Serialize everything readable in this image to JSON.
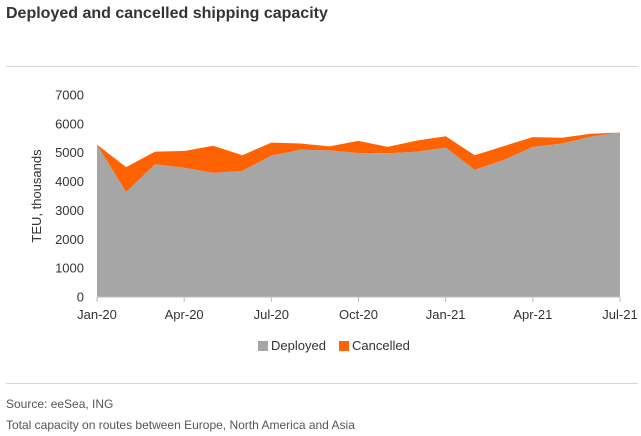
{
  "title": "Deployed and cancelled shipping capacity",
  "source": "Source: eeSea, ING",
  "note": "Total capacity on routes between Europe, North America and Asia",
  "colors": {
    "deployed": "#a6a6a6",
    "cancelled": "#ff6200"
  },
  "chart_data": {
    "type": "area",
    "stacked": true,
    "ylabel": "TEU, thousands",
    "ylim": [
      0,
      7000
    ],
    "yticks": [
      0,
      1000,
      2000,
      3000,
      4000,
      5000,
      6000,
      7000
    ],
    "xtick_labels": [
      "Jan-20",
      "Apr-20",
      "Jul-20",
      "Oct-20",
      "Jan-21",
      "Apr-21",
      "Jul-21"
    ],
    "xtick_index": [
      0,
      3,
      6,
      9,
      12,
      15,
      18
    ],
    "x": [
      "Jan-20",
      "Feb-20",
      "Mar-20",
      "Apr-20",
      "May-20",
      "Jun-20",
      "Jul-20",
      "Aug-20",
      "Sep-20",
      "Oct-20",
      "Nov-20",
      "Dec-20",
      "Jan-21",
      "Feb-21",
      "Mar-21",
      "Apr-21",
      "May-21",
      "Jun-21",
      "Jul-21"
    ],
    "series": [
      {
        "name": "Deployed",
        "values": [
          5280,
          3640,
          4600,
          4480,
          4300,
          4370,
          4900,
          5100,
          5080,
          4990,
          4980,
          5030,
          5180,
          4410,
          4750,
          5200,
          5320,
          5560,
          5700
        ]
      },
      {
        "name": "Cancelled",
        "values": [
          0,
          860,
          440,
          580,
          940,
          540,
          450,
          220,
          140,
          420,
          220,
          390,
          390,
          500,
          480,
          340,
          200,
          100,
          0
        ]
      }
    ],
    "legend_position": "bottom",
    "grid": false
  }
}
